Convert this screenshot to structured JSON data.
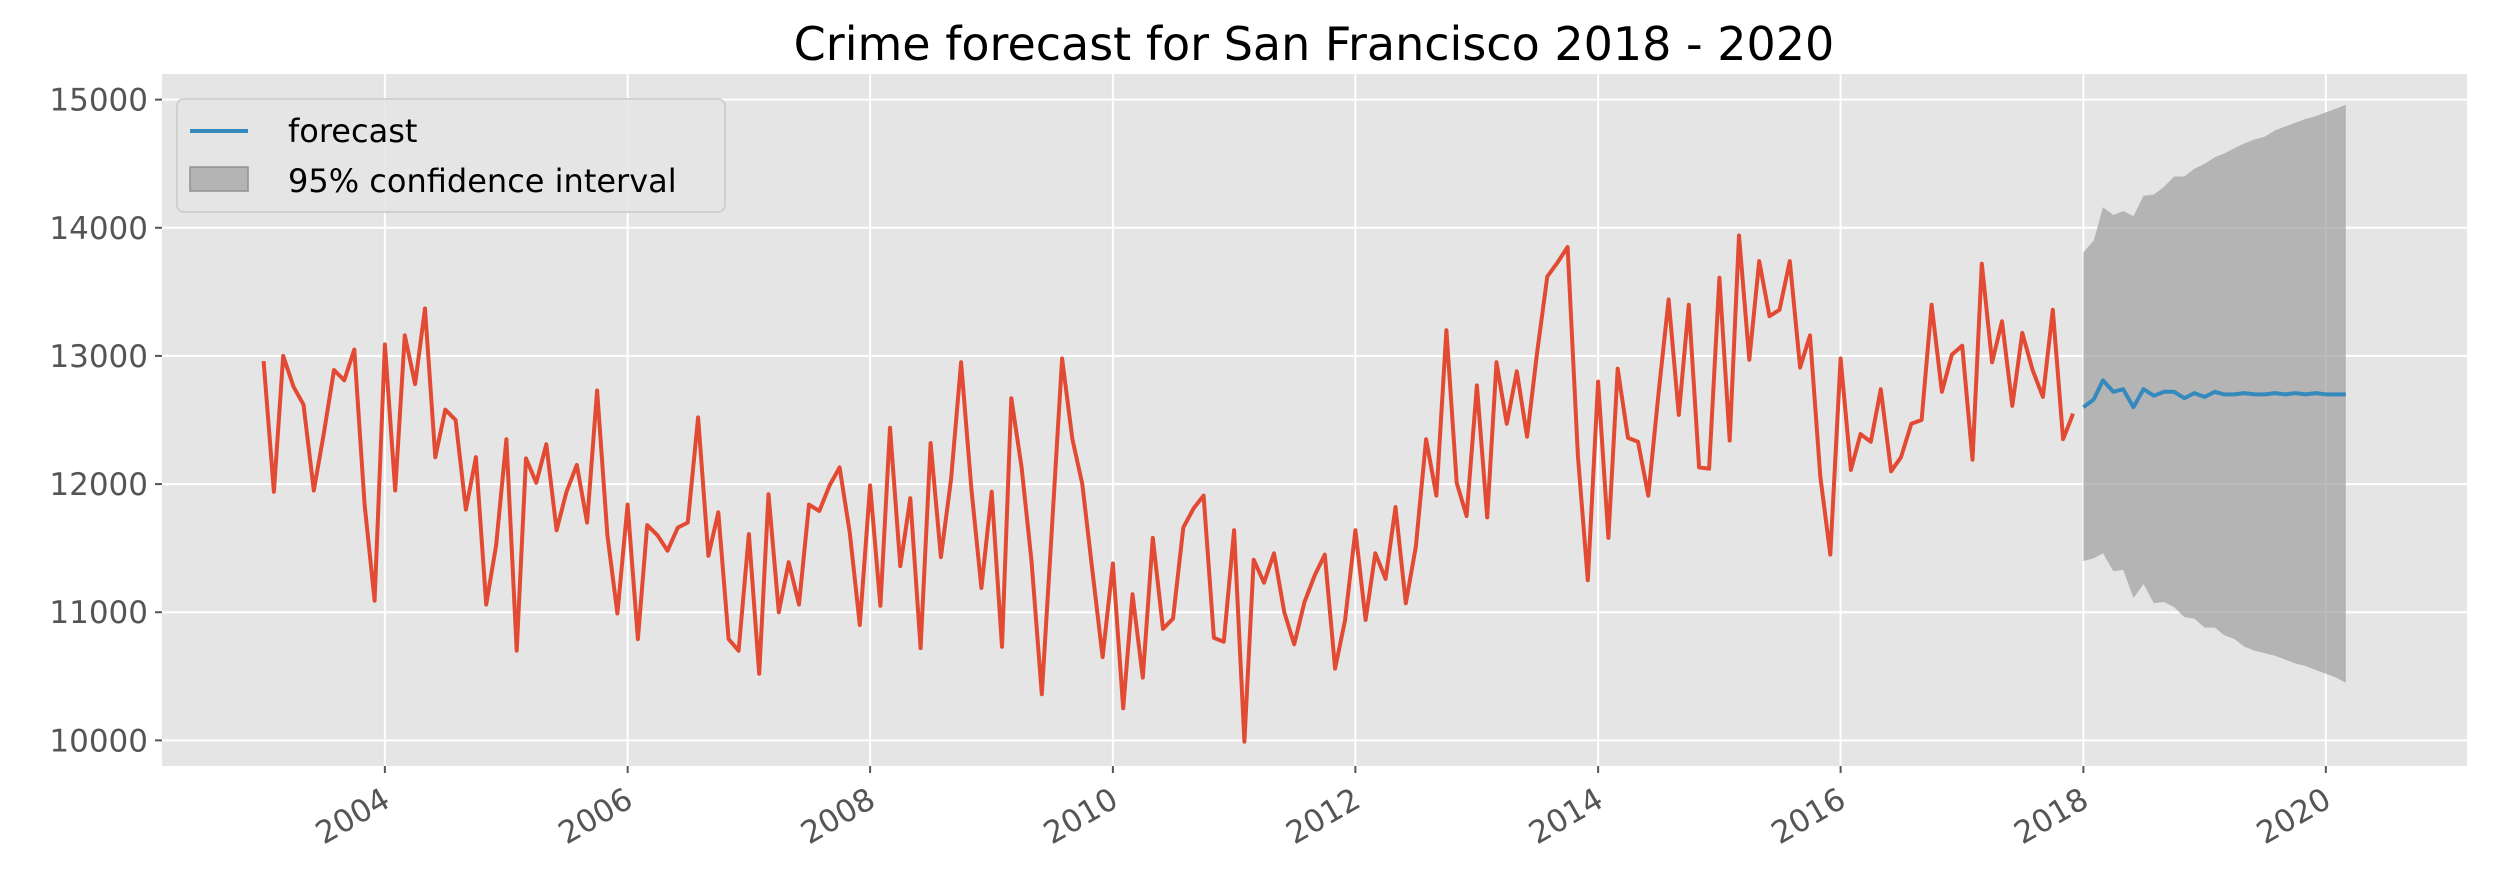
{
  "chart_data": {
    "type": "line",
    "title": "Crime forecast for San Francisco 2018 - 2020",
    "xlabel": "",
    "ylabel": "",
    "xlim": [
      "2002-03-01",
      "2021-03-01"
    ],
    "ylim": [
      9800,
      15200
    ],
    "grid": true,
    "legend_position": "top-left",
    "x_ticks": [
      "2004",
      "2006",
      "2008",
      "2010",
      "2012",
      "2014",
      "2016",
      "2018",
      "2020"
    ],
    "y_ticks": [
      "10000",
      "11000",
      "12000",
      "13000",
      "14000",
      "15000"
    ],
    "colors": {
      "observed": "#E24A33",
      "forecast": "#348ABD",
      "confidence_fill": "#A0A0A0",
      "plot_background": "#E5E5E5",
      "grid": "#FFFFFF"
    },
    "observed": {
      "start": "2003-01",
      "frequency": "monthly",
      "values": [
        12960,
        11940,
        13000,
        12760,
        12620,
        11950,
        12390,
        12890,
        12810,
        13050,
        11840,
        11090,
        13090,
        11950,
        13160,
        12780,
        13370,
        12210,
        12580,
        12500,
        11800,
        12210,
        11060,
        11520,
        12350,
        10700,
        12200,
        12010,
        12310,
        11640,
        11940,
        12150,
        11700,
        12730,
        11600,
        10990,
        11840,
        10790,
        11680,
        11600,
        11480,
        11660,
        11700,
        12520,
        11440,
        11780,
        10790,
        10700,
        11610,
        10520,
        11920,
        11000,
        11390,
        11060,
        11840,
        11790,
        11990,
        12130,
        11620,
        10900,
        11990,
        11050,
        12440,
        11360,
        11890,
        10720,
        12320,
        11430,
        12040,
        12950,
        11960,
        11190,
        11940,
        10730,
        12670,
        12130,
        11400,
        10360,
        11640,
        12980,
        12350,
        12000,
        11310,
        10650,
        11380,
        10250,
        11140,
        10490,
        11580,
        10870,
        10950,
        11660,
        11810,
        11910,
        10800,
        10770,
        11640,
        9990,
        11410,
        11230,
        11460,
        11000,
        10750,
        11080,
        11290,
        11450,
        10560,
        10940,
        11640,
        10940,
        11460,
        11260,
        11820,
        11070,
        11510,
        12350,
        11910,
        13200,
        12010,
        11750,
        12770,
        11740,
        12950,
        12470,
        12880,
        12370,
        13020,
        13620,
        13730,
        13850,
        12220,
        11250,
        12800,
        11580,
        12900,
        12360,
        12330,
        11910,
        12690,
        13440,
        12540,
        13400,
        12130,
        12120,
        13610,
        12340,
        13940,
        12970,
        13740,
        13310,
        13360,
        13740,
        12910,
        13160,
        12060,
        11450,
        12980,
        12110,
        12390,
        12330,
        12740,
        12100,
        12210,
        12470,
        12500,
        13400,
        12720,
        13010,
        13080,
        12190,
        13720,
        12950,
        13270,
        12610,
        13180,
        12890,
        12680,
        13360,
        12350,
        12550
      ]
    },
    "forecast": {
      "name": "forecast",
      "start": "2018-01",
      "frequency": "monthly",
      "values": [
        12600,
        12660,
        12810,
        12720,
        12740,
        12600,
        12740,
        12690,
        12720,
        12720,
        12670,
        12710,
        12680,
        12720,
        12700,
        12700,
        12710,
        12700,
        12700,
        12710,
        12700,
        12710,
        12700,
        12710,
        12700,
        12700,
        12700
      ]
    },
    "confidence_interval": {
      "name": "95% confidence interval",
      "start": "2018-01",
      "frequency": "monthly",
      "lower": [
        11400,
        11420,
        11460,
        11320,
        11330,
        11110,
        11220,
        11070,
        11080,
        11040,
        10960,
        10950,
        10880,
        10880,
        10820,
        10790,
        10730,
        10700,
        10680,
        10660,
        10630,
        10600,
        10580,
        10550,
        10520,
        10490,
        10450
      ],
      "upper": [
        13810,
        13900,
        14160,
        14100,
        14130,
        14090,
        14250,
        14260,
        14320,
        14400,
        14400,
        14460,
        14500,
        14550,
        14580,
        14620,
        14660,
        14690,
        14710,
        14760,
        14790,
        14820,
        14850,
        14870,
        14900,
        14930,
        14960
      ]
    }
  }
}
